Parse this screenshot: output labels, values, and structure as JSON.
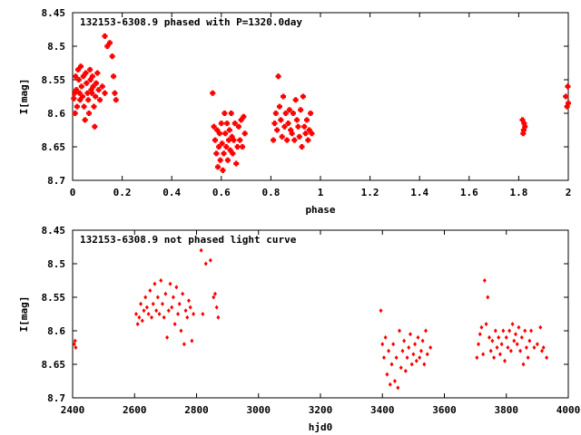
{
  "chart_data": [
    {
      "type": "scatter",
      "title": "132153-6308.9 phased with P=1320.0day",
      "xlabel": "phase",
      "ylabel": "I[mag]",
      "xlim": [
        0,
        2
      ],
      "ylim": [
        8.7,
        8.45
      ],
      "y_inverted": true,
      "xticks": [
        "0",
        "0.2",
        "0.4",
        "0.6",
        "0.8",
        "1",
        "1.2",
        "1.4",
        "1.6",
        "1.8",
        "2"
      ],
      "yticks": [
        "8.45",
        "8.5",
        "8.55",
        "8.6",
        "8.65",
        "8.7"
      ],
      "grid": false,
      "marker": "filled-cross",
      "color": "#ff0000",
      "series": [
        {
          "points": [
            [
              0.005,
              8.578
            ],
            [
              0.008,
              8.57
            ],
            [
              0.012,
              8.545
            ],
            [
              0.015,
              8.565
            ],
            [
              0.018,
              8.59
            ],
            [
              0.022,
              8.535
            ],
            [
              0.025,
              8.55
            ],
            [
              0.028,
              8.57
            ],
            [
              0.03,
              8.58
            ],
            [
              0.033,
              8.53
            ],
            [
              0.036,
              8.56
            ],
            [
              0.04,
              8.575
            ],
            [
              0.043,
              8.545
            ],
            [
              0.046,
              8.59
            ],
            [
              0.05,
              8.61
            ],
            [
              0.053,
              8.54
            ],
            [
              0.056,
              8.555
            ],
            [
              0.06,
              8.57
            ],
            [
              0.063,
              8.58
            ],
            [
              0.066,
              8.6
            ],
            [
              0.07,
              8.535
            ],
            [
              0.072,
              8.55
            ],
            [
              0.075,
              8.565
            ],
            [
              0.078,
              8.57
            ],
            [
              0.08,
              8.545
            ],
            [
              0.083,
              8.56
            ],
            [
              0.086,
              8.59
            ],
            [
              0.089,
              8.62
            ],
            [
              0.092,
              8.575
            ],
            [
              0.095,
              8.555
            ],
            [
              0.1,
              8.54
            ],
            [
              0.105,
              8.565
            ],
            [
              0.11,
              8.58
            ],
            [
              0.13,
              8.485
            ],
            [
              0.14,
              8.5
            ],
            [
              0.15,
              8.495
            ],
            [
              0.16,
              8.515
            ],
            [
              0.165,
              8.545
            ],
            [
              0.17,
              8.57
            ],
            [
              0.175,
              8.58
            ],
            [
              0.13,
              8.57
            ],
            [
              0.12,
              8.56
            ],
            [
              0.01,
              8.6
            ],
            [
              0.565,
              8.57
            ],
            [
              0.57,
              8.62
            ],
            [
              0.575,
              8.64
            ],
            [
              0.58,
              8.66
            ],
            [
              0.583,
              8.625
            ],
            [
              0.586,
              8.68
            ],
            [
              0.59,
              8.65
            ],
            [
              0.593,
              8.63
            ],
            [
              0.596,
              8.67
            ],
            [
              0.6,
              8.615
            ],
            [
              0.603,
              8.645
            ],
            [
              0.606,
              8.685
            ],
            [
              0.61,
              8.66
            ],
            [
              0.613,
              8.6
            ],
            [
              0.616,
              8.63
            ],
            [
              0.62,
              8.65
            ],
            [
              0.623,
              8.615
            ],
            [
              0.626,
              8.67
            ],
            [
              0.63,
              8.64
            ],
            [
              0.633,
              8.625
            ],
            [
              0.636,
              8.655
            ],
            [
              0.64,
              8.6
            ],
            [
              0.643,
              8.635
            ],
            [
              0.646,
              8.66
            ],
            [
              0.65,
              8.64
            ],
            [
              0.655,
              8.615
            ],
            [
              0.66,
              8.675
            ],
            [
              0.665,
              8.65
            ],
            [
              0.67,
              8.62
            ],
            [
              0.675,
              8.64
            ],
            [
              0.68,
              8.61
            ],
            [
              0.685,
              8.65
            ],
            [
              0.69,
              8.605
            ],
            [
              0.695,
              8.63
            ],
            [
              0.81,
              8.64
            ],
            [
              0.815,
              8.615
            ],
            [
              0.82,
              8.6
            ],
            [
              0.825,
              8.625
            ],
            [
              0.83,
              8.545
            ],
            [
              0.835,
              8.59
            ],
            [
              0.84,
              8.61
            ],
            [
              0.845,
              8.635
            ],
            [
              0.85,
              8.575
            ],
            [
              0.855,
              8.62
            ],
            [
              0.86,
              8.6
            ],
            [
              0.865,
              8.64
            ],
            [
              0.87,
              8.615
            ],
            [
              0.875,
              8.595
            ],
            [
              0.88,
              8.625
            ],
            [
              0.885,
              8.63
            ],
            [
              0.89,
              8.6
            ],
            [
              0.895,
              8.64
            ],
            [
              0.9,
              8.58
            ],
            [
              0.905,
              8.61
            ],
            [
              0.91,
              8.62
            ],
            [
              0.915,
              8.635
            ],
            [
              0.92,
              8.595
            ],
            [
              0.925,
              8.65
            ],
            [
              0.93,
              8.575
            ],
            [
              0.935,
              8.62
            ],
            [
              0.94,
              8.63
            ],
            [
              0.945,
              8.61
            ],
            [
              0.95,
              8.64
            ],
            [
              0.955,
              8.625
            ],
            [
              0.96,
              8.6
            ],
            [
              0.965,
              8.63
            ],
            [
              1.815,
              8.61
            ],
            [
              1.82,
              8.625
            ],
            [
              1.822,
              8.615
            ],
            [
              1.825,
              8.62
            ],
            [
              1.818,
              8.63
            ],
            [
              1.99,
              8.575
            ],
            [
              1.995,
              8.59
            ],
            [
              1.998,
              8.56
            ],
            [
              2.0,
              8.585
            ]
          ]
        }
      ]
    },
    {
      "type": "scatter",
      "title": "132153-6308.9 not phased light curve",
      "xlabel": "hjd0",
      "ylabel": "I[mag]",
      "xlim": [
        2400,
        4000
      ],
      "ylim": [
        8.7,
        8.45
      ],
      "y_inverted": true,
      "xticks": [
        "2400",
        "2600",
        "2800",
        "3000",
        "3200",
        "3400",
        "3600",
        "3800",
        "4000"
      ],
      "yticks": [
        "8.45",
        "8.5",
        "8.55",
        "8.6",
        "8.65",
        "8.7"
      ],
      "grid": false,
      "marker": "small-diamond",
      "color": "#ff0000",
      "series": [
        {
          "points": [
            [
              2405,
              8.62
            ],
            [
              2408,
              8.615
            ],
            [
              2410,
              8.625
            ],
            [
              2605,
              8.575
            ],
            [
              2610,
              8.59
            ],
            [
              2615,
              8.58
            ],
            [
              2620,
              8.56
            ],
            [
              2625,
              8.585
            ],
            [
              2630,
              8.57
            ],
            [
              2635,
              8.55
            ],
            [
              2640,
              8.565
            ],
            [
              2645,
              8.575
            ],
            [
              2650,
              8.54
            ],
            [
              2655,
              8.58
            ],
            [
              2660,
              8.56
            ],
            [
              2665,
              8.53
            ],
            [
              2670,
              8.57
            ],
            [
              2675,
              8.55
            ],
            [
              2680,
              8.575
            ],
            [
              2685,
              8.525
            ],
            [
              2690,
              8.56
            ],
            [
              2695,
              8.58
            ],
            [
              2700,
              8.545
            ],
            [
              2705,
              8.61
            ],
            [
              2710,
              8.57
            ],
            [
              2715,
              8.53
            ],
            [
              2720,
              8.565
            ],
            [
              2725,
              8.55
            ],
            [
              2730,
              8.59
            ],
            [
              2735,
              8.535
            ],
            [
              2740,
              8.575
            ],
            [
              2745,
              8.56
            ],
            [
              2750,
              8.6
            ],
            [
              2755,
              8.545
            ],
            [
              2760,
              8.62
            ],
            [
              2765,
              8.57
            ],
            [
              2770,
              8.58
            ],
            [
              2775,
              8.555
            ],
            [
              2780,
              8.565
            ],
            [
              2785,
              8.615
            ],
            [
              2790,
              8.575
            ],
            [
              2815,
              8.48
            ],
            [
              2830,
              8.5
            ],
            [
              2845,
              8.495
            ],
            [
              2855,
              8.55
            ],
            [
              2860,
              8.545
            ],
            [
              2865,
              8.565
            ],
            [
              2870,
              8.58
            ],
            [
              2820,
              8.575
            ],
            [
              3395,
              8.57
            ],
            [
              3400,
              8.62
            ],
            [
              3405,
              8.64
            ],
            [
              3410,
              8.61
            ],
            [
              3415,
              8.665
            ],
            [
              3420,
              8.63
            ],
            [
              3425,
              8.68
            ],
            [
              3430,
              8.65
            ],
            [
              3435,
              8.62
            ],
            [
              3440,
              8.675
            ],
            [
              3445,
              8.64
            ],
            [
              3450,
              8.685
            ],
            [
              3455,
              8.6
            ],
            [
              3460,
              8.655
            ],
            [
              3465,
              8.63
            ],
            [
              3470,
              8.615
            ],
            [
              3475,
              8.66
            ],
            [
              3480,
              8.64
            ],
            [
              3485,
              8.625
            ],
            [
              3490,
              8.605
            ],
            [
              3495,
              8.65
            ],
            [
              3500,
              8.635
            ],
            [
              3505,
              8.62
            ],
            [
              3510,
              8.645
            ],
            [
              3515,
              8.61
            ],
            [
              3520,
              8.64
            ],
            [
              3525,
              8.63
            ],
            [
              3530,
              8.615
            ],
            [
              3535,
              8.65
            ],
            [
              3540,
              8.6
            ],
            [
              3545,
              8.635
            ],
            [
              3555,
              8.625
            ],
            [
              3705,
              8.64
            ],
            [
              3710,
              8.62
            ],
            [
              3715,
              8.605
            ],
            [
              3720,
              8.595
            ],
            [
              3725,
              8.635
            ],
            [
              3730,
              8.525
            ],
            [
              3735,
              8.59
            ],
            [
              3740,
              8.55
            ],
            [
              3745,
              8.61
            ],
            [
              3750,
              8.63
            ],
            [
              3755,
              8.615
            ],
            [
              3760,
              8.64
            ],
            [
              3765,
              8.6
            ],
            [
              3770,
              8.625
            ],
            [
              3775,
              8.61
            ],
            [
              3780,
              8.635
            ],
            [
              3785,
              8.62
            ],
            [
              3790,
              8.6
            ],
            [
              3795,
              8.645
            ],
            [
              3800,
              8.61
            ],
            [
              3805,
              8.625
            ],
            [
              3810,
              8.6
            ],
            [
              3815,
              8.63
            ],
            [
              3820,
              8.59
            ],
            [
              3825,
              8.615
            ],
            [
              3830,
              8.605
            ],
            [
              3835,
              8.62
            ],
            [
              3840,
              8.595
            ],
            [
              3845,
              8.63
            ],
            [
              3850,
              8.61
            ],
            [
              3855,
              8.65
            ],
            [
              3860,
              8.6
            ],
            [
              3865,
              8.625
            ],
            [
              3870,
              8.64
            ],
            [
              3875,
              8.615
            ],
            [
              3880,
              8.6
            ],
            [
              3890,
              8.625
            ],
            [
              3900,
              8.62
            ],
            [
              3910,
              8.595
            ],
            [
              3915,
              8.63
            ],
            [
              3920,
              8.625
            ],
            [
              3930,
              8.64
            ]
          ]
        }
      ]
    }
  ]
}
